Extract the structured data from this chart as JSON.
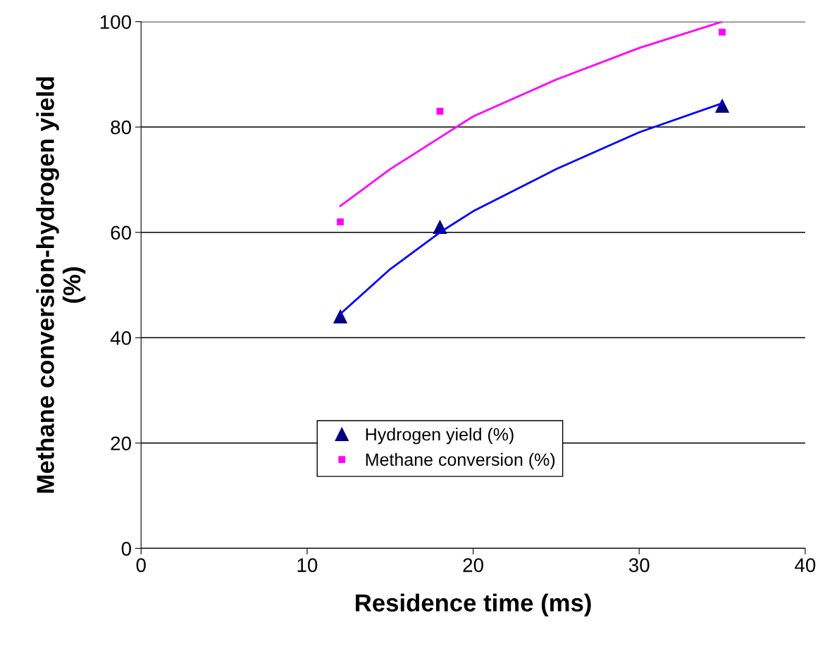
{
  "chart_data": {
    "type": "scatter",
    "xlabel": "Residence time (ms)",
    "ylabel": "Methane conversion-hydrogen yield (%)",
    "xlim": [
      0,
      40
    ],
    "xticks": [
      0,
      10,
      20,
      30,
      40
    ],
    "ylim": [
      0,
      100
    ],
    "yticks": [
      0,
      20,
      40,
      60,
      80,
      100
    ],
    "grid": "y",
    "legend": "bottom",
    "series": [
      {
        "name": "Hydrogen yield (%)",
        "marker": "triangle",
        "color": "#000080",
        "x": [
          12,
          18,
          35
        ],
        "values": [
          44,
          61,
          84
        ]
      },
      {
        "name": "Methane conversion (%)",
        "marker": "square",
        "color": "#ff00ff",
        "x": [
          12,
          18,
          35
        ],
        "values": [
          62,
          83,
          98
        ]
      },
      {
        "type": "line",
        "marker": "none",
        "color": "#0000ff",
        "x": [
          12,
          15,
          18,
          20,
          25,
          30,
          35
        ],
        "values": [
          44.5,
          53,
          60,
          64,
          72,
          79,
          84.5
        ]
      },
      {
        "type": "line",
        "marker": "none",
        "color": "#ff00ff",
        "x": [
          12,
          15,
          18,
          20,
          25,
          30,
          35
        ],
        "values": [
          65,
          72,
          78,
          82,
          89,
          95,
          100
        ]
      }
    ]
  }
}
